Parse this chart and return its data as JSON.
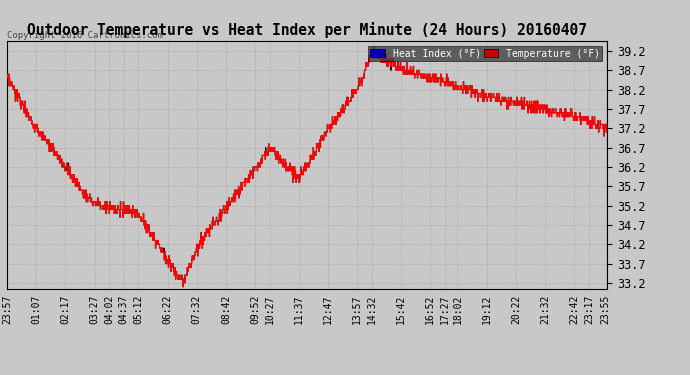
{
  "title": "Outdoor Temperature vs Heat Index per Minute (24 Hours) 20160407",
  "copyright": "Copyright 2016 Cartronics.com",
  "ylim": [
    33.05,
    39.45
  ],
  "yticks": [
    33.2,
    33.7,
    34.2,
    34.7,
    35.2,
    35.7,
    36.2,
    36.7,
    37.2,
    37.7,
    38.2,
    38.7,
    39.2
  ],
  "background_color": "#c8c8c8",
  "plot_bg_color": "#c8c8c8",
  "temp_color": "#ff0000",
  "heat_color": "#000000",
  "legend_heat_bg": "#0000bb",
  "legend_temp_bg": "#cc0000",
  "xtick_labels": [
    "23:57",
    "01:07",
    "02:17",
    "03:27",
    "04:02",
    "04:37",
    "05:12",
    "06:22",
    "07:32",
    "08:42",
    "09:52",
    "10:27",
    "11:37",
    "12:47",
    "13:57",
    "14:32",
    "15:42",
    "16:52",
    "17:27",
    "18:02",
    "19:12",
    "20:22",
    "21:32",
    "22:42",
    "23:17",
    "23:55"
  ],
  "xtick_positions": [
    0,
    70,
    140,
    210,
    245,
    280,
    315,
    385,
    455,
    525,
    595,
    630,
    700,
    770,
    840,
    875,
    945,
    1015,
    1050,
    1080,
    1150,
    1220,
    1290,
    1360,
    1395,
    1435
  ],
  "n_points": 1440
}
